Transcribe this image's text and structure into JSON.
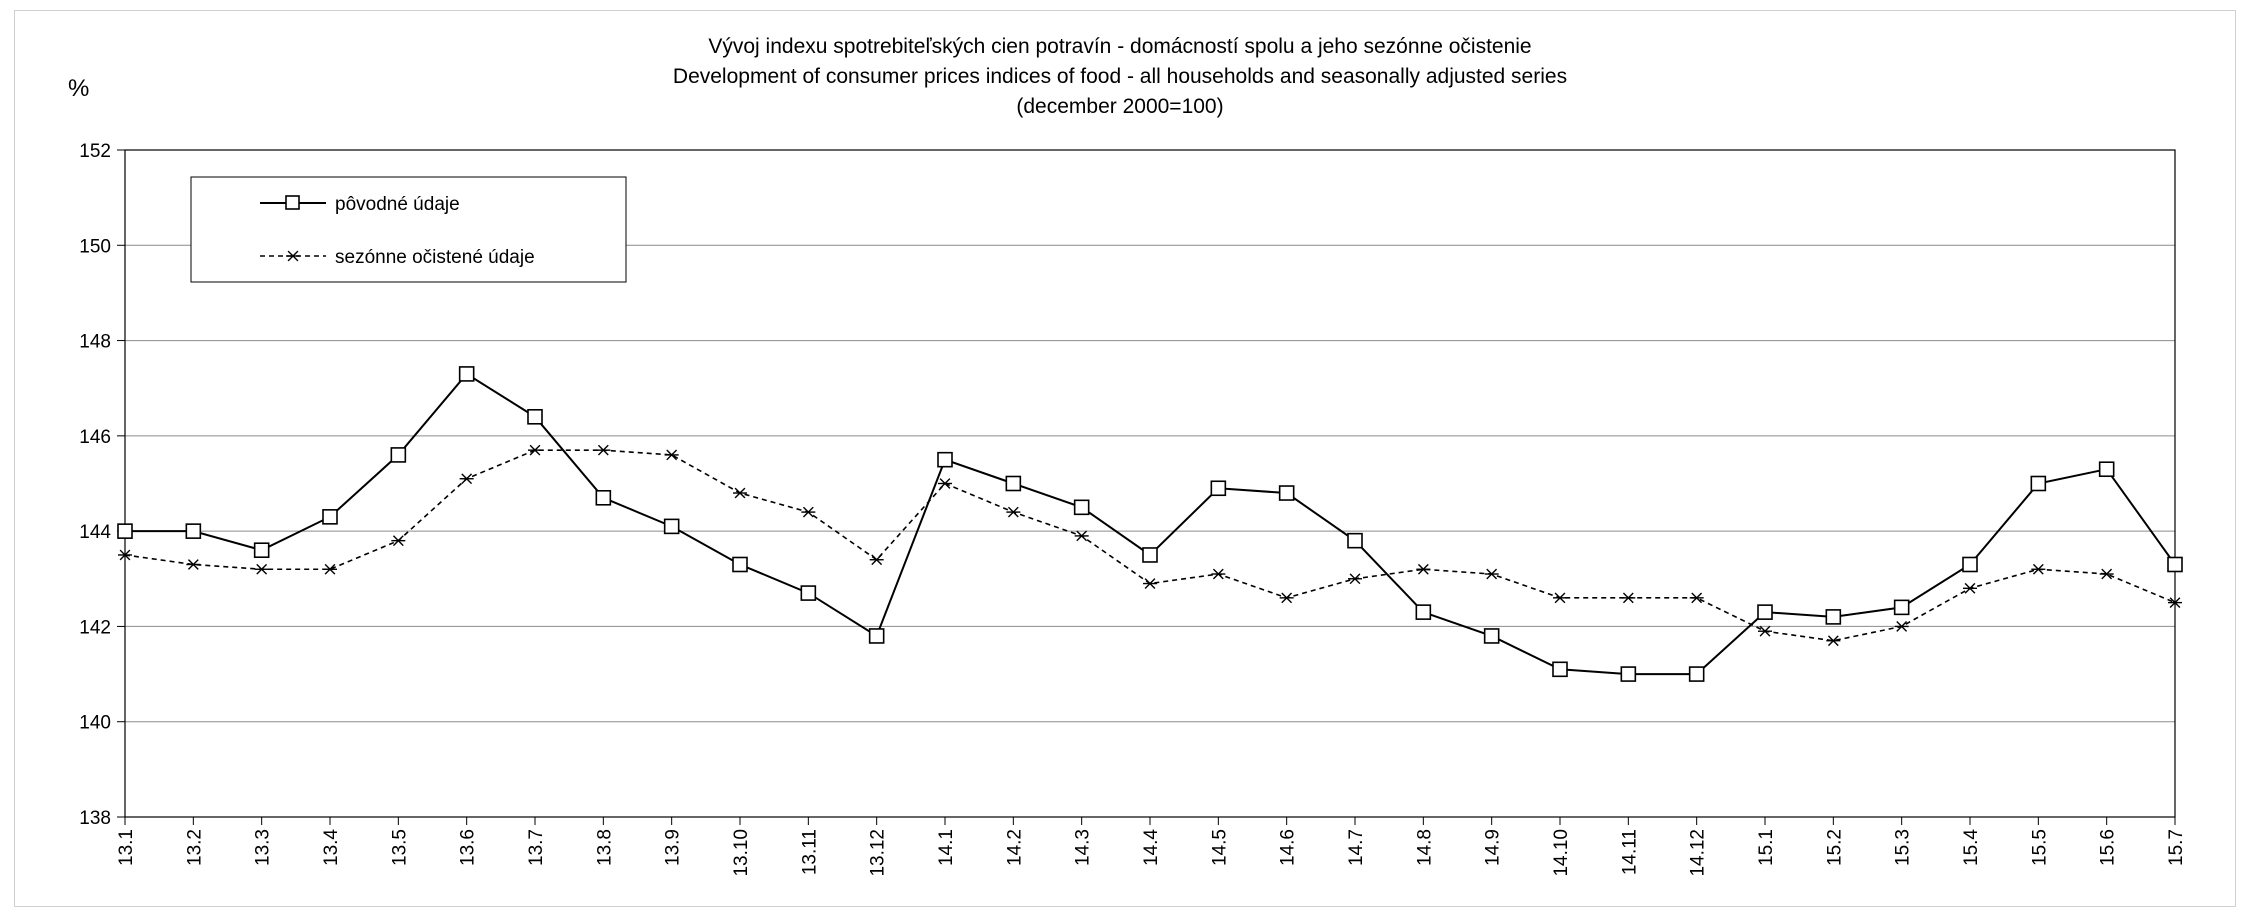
{
  "chart_data": {
    "type": "line",
    "title_lines": [
      "Vývoj indexu spotrebiteľských cien potravín - domácností spolu a jeho sezónne očistenie",
      "Development of consumer prices indices of food - all households and seasonally adjusted series",
      "(december 2000=100)"
    ],
    "ylabel": "%",
    "ylim": [
      138,
      152
    ],
    "yticks": [
      "138",
      "140",
      "142",
      "144",
      "146",
      "148",
      "150",
      "152"
    ],
    "grid": true,
    "legend_position": "top-left",
    "categories": [
      "13.1",
      "13.2",
      "13.3",
      "13.4",
      "13.5",
      "13.6",
      "13.7",
      "13.8",
      "13.9",
      "13.10",
      "13.11",
      "13.12",
      "14.1",
      "14.2",
      "14.3",
      "14.4",
      "14.5",
      "14.6",
      "14.7",
      "14.8",
      "14.9",
      "14.10",
      "14.11",
      "14.12",
      "15.1",
      "15.2",
      "15.3",
      "15.4",
      "15.5",
      "15.6",
      "15.7"
    ],
    "series": [
      {
        "name": "pôvodné údaje",
        "style": "solid",
        "marker": "square",
        "color": "#000000",
        "values": [
          144.0,
          144.0,
          143.6,
          144.3,
          145.6,
          147.3,
          146.4,
          144.7,
          144.1,
          143.3,
          142.7,
          141.8,
          145.5,
          145.0,
          144.5,
          143.5,
          144.9,
          144.8,
          143.8,
          142.3,
          141.8,
          141.1,
          141.0,
          141.0,
          142.3,
          142.2,
          142.4,
          143.3,
          145.0,
          145.3,
          143.3
        ]
      },
      {
        "name": "sezónne očistené údaje",
        "style": "dashed",
        "marker": "asterisk",
        "color": "#000000",
        "values": [
          143.5,
          143.3,
          143.2,
          143.2,
          143.8,
          145.1,
          145.7,
          145.7,
          145.6,
          144.8,
          144.4,
          143.4,
          145.0,
          144.4,
          143.9,
          142.9,
          143.1,
          142.6,
          143.0,
          143.2,
          143.1,
          142.6,
          142.6,
          142.6,
          141.9,
          141.7,
          142.0,
          142.8,
          143.2,
          143.1,
          142.5
        ]
      }
    ]
  }
}
